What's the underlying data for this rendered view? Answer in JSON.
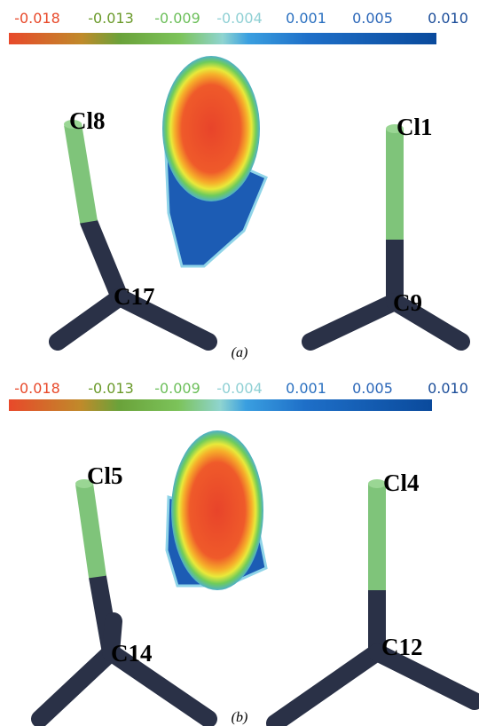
{
  "panels": [
    {
      "colorbar": [
        "-0.018",
        "-0.013",
        "-0.009",
        "-0.004",
        "0.001",
        "0.005",
        "0.010"
      ],
      "atoms": [
        "Cl8",
        "C17",
        "Cl1",
        "C9"
      ],
      "caption": "(a)"
    },
    {
      "colorbar": [
        "-0.018",
        "-0.013",
        "-0.009",
        "-0.004",
        "0.001",
        "0.005",
        "0.010"
      ],
      "atoms": [
        "Cl5",
        "C14",
        "Cl4",
        "C12"
      ],
      "caption": "(b)"
    }
  ]
}
